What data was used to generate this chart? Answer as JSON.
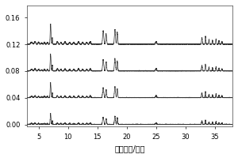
{
  "title": "",
  "xlabel": "保留时间/分钟",
  "ylabel": "",
  "xlim": [
    3,
    38
  ],
  "ylim": [
    -0.003,
    0.178
  ],
  "yticks": [
    0.0,
    0.04,
    0.08,
    0.12,
    0.16
  ],
  "xticks": [
    5,
    10,
    15,
    20,
    25,
    30,
    35
  ],
  "offsets": [
    0.0,
    0.04,
    0.08,
    0.12
  ],
  "bg_color": "#ffffff",
  "line_color": "#333333",
  "figsize": [
    3.0,
    2.0
  ],
  "dpi": 100
}
